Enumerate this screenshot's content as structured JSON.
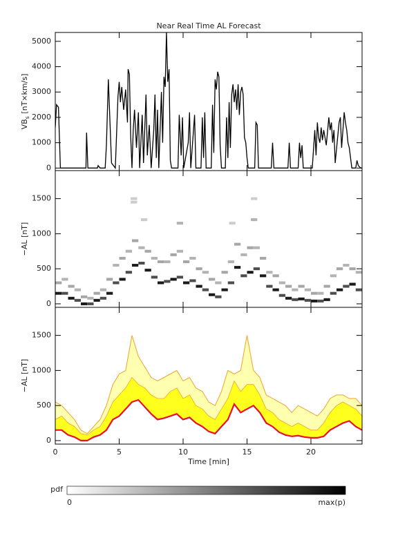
{
  "chart_data": [
    {
      "type": "line",
      "title": "Near Real Time AL Forecast",
      "ylabel": "VB",
      "ylabel_sub": "s",
      "ylabel_unit": " [nT×km/s]",
      "xlim": [
        0,
        24
      ],
      "xticks": [
        0,
        5,
        10,
        15,
        20
      ],
      "ylim": [
        -100,
        5350
      ],
      "yticks": [
        0,
        1000,
        2000,
        3000,
        4000,
        5000
      ],
      "series": [
        {
          "color": "#000000",
          "x": [
            0,
            0.1,
            0.25,
            0.4,
            2.4,
            2.45,
            2.55,
            3.3,
            3.35,
            3.5,
            3.9,
            4.0,
            4.15,
            4.3,
            4.4,
            4.7,
            4.8,
            4.9,
            5.0,
            5.1,
            5.2,
            5.35,
            5.5,
            5.65,
            5.7,
            5.8,
            5.9,
            6.0,
            6.1,
            6.2,
            6.35,
            6.5,
            6.6,
            6.8,
            6.9,
            7.1,
            7.2,
            7.35,
            7.5,
            7.7,
            7.8,
            7.9,
            8.0,
            8.1,
            8.3,
            8.4,
            8.5,
            8.6,
            8.7,
            8.8,
            8.9,
            9.0,
            9.1,
            9.6,
            9.7,
            9.85,
            9.95,
            10.05,
            10.4,
            10.5,
            10.6,
            10.9,
            11.0,
            11.4,
            11.5,
            11.6,
            11.7,
            11.8,
            12.2,
            12.3,
            12.4,
            12.5,
            12.6,
            12.7,
            12.8,
            12.9,
            13.0,
            13.3,
            13.4,
            13.5,
            13.6,
            13.7,
            13.8,
            13.9,
            14.0,
            14.1,
            14.2,
            14.3,
            14.4,
            14.5,
            14.6,
            14.7,
            14.8,
            14.9,
            15.0,
            15.1,
            15.6,
            15.7,
            15.8,
            15.9,
            16.9,
            17.0,
            17.1,
            18.2,
            18.3,
            18.4,
            19.0,
            19.1,
            19.2,
            19.3,
            19.4,
            20.1,
            20.3,
            20.4,
            20.5,
            20.6,
            20.7,
            20.8,
            20.9,
            21.0,
            21.2,
            21.4,
            21.5,
            21.6,
            21.7,
            21.8,
            21.9,
            22.2,
            22.3,
            22.4,
            22.5,
            22.6,
            22.7,
            22.8,
            22.9,
            23.0,
            23.2,
            23.5,
            23.6,
            23.7,
            23.9,
            24.0
          ],
          "values": [
            1600,
            2500,
            2400,
            0,
            0,
            1400,
            0,
            0,
            100,
            0,
            0,
            900,
            3500,
            1500,
            200,
            0,
            1400,
            2800,
            3400,
            2600,
            3200,
            2300,
            3100,
            1800,
            3900,
            3700,
            1200,
            0,
            1500,
            2300,
            800,
            2200,
            0,
            2100,
            200,
            2900,
            500,
            1700,
            0,
            1500,
            2900,
            400,
            2300,
            0,
            3000,
            1000,
            3600,
            3200,
            5350,
            3400,
            3900,
            300,
            0,
            0,
            2100,
            500,
            2000,
            0,
            1000,
            2200,
            0,
            2100,
            0,
            0,
            2000,
            400,
            2200,
            0,
            0,
            2500,
            600,
            3500,
            3100,
            3800,
            3600,
            900,
            0,
            0,
            2000,
            400,
            2600,
            800,
            2900,
            3300,
            2600,
            3100,
            2300,
            3300,
            2100,
            3000,
            3200,
            2900,
            1200,
            1000,
            400,
            0,
            0,
            1800,
            1700,
            0,
            0,
            1000,
            0,
            0,
            1000,
            0,
            0,
            1000,
            400,
            900,
            0,
            0,
            1500,
            500,
            1800,
            1200,
            1000,
            1600,
            1100,
            1500,
            900,
            2000,
            1500,
            1800,
            1000,
            1500,
            200,
            1800,
            2000,
            800,
            1500,
            2200,
            1800,
            1500,
            1000,
            800,
            0,
            0,
            300,
            100,
            0,
            0
          ]
        }
      ]
    },
    {
      "type": "heatmap",
      "ylabel": "−AL [nT]",
      "xlim": [
        0,
        24
      ],
      "xticks": [
        0,
        5,
        10,
        15,
        20
      ],
      "ylim": [
        -50,
        1900
      ],
      "yticks": [
        0,
        500,
        1000,
        1500
      ],
      "colormap": [
        "#ffffff",
        "#000000"
      ],
      "plim": [
        0,
        1
      ],
      "colorbar_label": "pdf",
      "colorbar_ticks": [
        0,
        {
          "value": 1,
          "label": "max(p)"
        }
      ],
      "x": [
        0,
        0.5,
        1,
        1.5,
        2,
        2.5,
        3,
        3.5,
        4,
        4.5,
        5,
        5.5,
        6,
        6.5,
        7,
        7.5,
        8,
        8.5,
        9,
        9.5,
        10,
        10.5,
        11,
        11.5,
        12,
        12.5,
        13,
        13.5,
        14,
        14.5,
        15,
        15.5,
        16,
        16.5,
        17,
        17.5,
        18,
        18.5,
        19,
        19.5,
        20,
        20.5,
        21,
        21.5,
        22,
        22.5,
        23,
        23.5,
        0,
        0.5,
        1,
        1.5,
        2,
        2.5,
        3,
        3.5,
        4,
        4.5,
        5,
        5.5,
        6,
        6.5,
        7,
        7.5,
        8,
        8.5,
        9,
        9.5,
        10,
        10.5,
        11,
        11.5,
        12,
        12.5,
        13,
        13.5,
        14,
        14.5,
        15,
        15.5,
        16,
        16.5,
        17,
        17.5,
        18,
        18.5,
        19,
        19.5,
        20,
        20.5,
        21,
        21.5,
        22,
        22.5,
        23,
        23.5,
        5.9,
        5.9,
        15.3,
        15.3,
        9.5,
        6.7,
        13.6
      ],
      "y": [
        150,
        150,
        80,
        50,
        0,
        0,
        50,
        80,
        150,
        300,
        350,
        450,
        550,
        580,
        480,
        380,
        300,
        320,
        350,
        380,
        300,
        330,
        250,
        200,
        130,
        100,
        200,
        300,
        520,
        400,
        450,
        500,
        400,
        250,
        200,
        120,
        80,
        60,
        70,
        50,
        40,
        40,
        60,
        150,
        200,
        250,
        280,
        200,
        300,
        350,
        250,
        200,
        100,
        80,
        150,
        200,
        350,
        550,
        650,
        750,
        900,
        800,
        750,
        650,
        600,
        600,
        700,
        750,
        600,
        650,
        500,
        450,
        350,
        300,
        450,
        600,
        850,
        700,
        800,
        800,
        650,
        450,
        400,
        300,
        250,
        200,
        250,
        200,
        150,
        150,
        250,
        400,
        500,
        550,
        500,
        450,
        1500,
        1450,
        1500,
        1200,
        1150,
        1200,
        1150
      ],
      "p": [
        0.9,
        0.7,
        0.9,
        0.7,
        0.9,
        0.7,
        0.9,
        0.7,
        0.9,
        0.7,
        0.9,
        0.7,
        0.9,
        0.7,
        0.9,
        0.7,
        0.9,
        0.7,
        0.9,
        0.7,
        0.9,
        0.7,
        0.9,
        0.7,
        0.9,
        0.7,
        0.9,
        0.7,
        0.9,
        0.7,
        0.9,
        0.7,
        0.9,
        0.7,
        0.9,
        0.7,
        0.9,
        0.7,
        0.9,
        0.7,
        0.9,
        0.7,
        0.9,
        0.7,
        0.9,
        0.7,
        0.9,
        0.7,
        0.35,
        0.3,
        0.35,
        0.3,
        0.35,
        0.3,
        0.35,
        0.3,
        0.35,
        0.3,
        0.35,
        0.3,
        0.35,
        0.3,
        0.35,
        0.3,
        0.35,
        0.3,
        0.35,
        0.3,
        0.35,
        0.3,
        0.35,
        0.3,
        0.35,
        0.3,
        0.35,
        0.3,
        0.35,
        0.3,
        0.35,
        0.3,
        0.35,
        0.3,
        0.35,
        0.3,
        0.35,
        0.3,
        0.35,
        0.3,
        0.35,
        0.3,
        0.35,
        0.3,
        0.35,
        0.3,
        0.35,
        0.3,
        0.2,
        0.2,
        0.2,
        0.3,
        0.3,
        0.2,
        0.2
      ]
    },
    {
      "type": "band",
      "ylabel": "−AL [nT]",
      "xlabel": "Time [min]",
      "xlim": [
        0,
        24
      ],
      "xticks": [
        0,
        5,
        10,
        15,
        20
      ],
      "ylim": [
        -50,
        1900
      ],
      "yticks": [
        0,
        500,
        1000,
        1500
      ],
      "x": [
        0,
        0.5,
        1,
        1.5,
        2,
        2.5,
        3,
        3.5,
        4,
        4.5,
        5,
        5.5,
        6,
        6.5,
        7,
        7.5,
        8,
        8.5,
        9,
        9.5,
        10,
        10.5,
        11,
        11.5,
        12,
        12.5,
        13,
        13.5,
        14,
        14.5,
        15,
        15.5,
        16,
        16.5,
        17,
        17.5,
        18,
        18.5,
        19,
        19.5,
        20,
        20.5,
        21,
        21.5,
        22,
        22.5,
        23,
        23.5,
        24
      ],
      "series": [
        {
          "color": "#e8102a",
          "values": [
            150,
            150,
            80,
            50,
            0,
            0,
            50,
            80,
            150,
            300,
            350,
            450,
            550,
            580,
            480,
            380,
            300,
            320,
            350,
            380,
            300,
            330,
            250,
            200,
            130,
            100,
            200,
            300,
            520,
            400,
            450,
            500,
            400,
            250,
            200,
            120,
            80,
            60,
            70,
            50,
            40,
            40,
            60,
            150,
            200,
            250,
            280,
            200,
            150
          ]
        },
        {
          "color": "#ffff1e",
          "values": [
            300,
            350,
            250,
            200,
            100,
            80,
            150,
            200,
            350,
            550,
            650,
            750,
            900,
            800,
            750,
            650,
            600,
            600,
            700,
            750,
            600,
            650,
            500,
            450,
            350,
            300,
            450,
            600,
            850,
            700,
            800,
            800,
            650,
            450,
            400,
            300,
            250,
            200,
            250,
            200,
            150,
            150,
            250,
            400,
            500,
            550,
            500,
            450,
            350
          ]
        },
        {
          "color": "#f0a030",
          "values": [
            550,
            500,
            400,
            300,
            150,
            100,
            200,
            300,
            500,
            800,
            950,
            1000,
            1500,
            1200,
            1050,
            900,
            850,
            900,
            950,
            1000,
            850,
            900,
            750,
            700,
            550,
            500,
            700,
            1000,
            950,
            1000,
            1500,
            1000,
            900,
            650,
            600,
            550,
            500,
            400,
            500,
            450,
            400,
            350,
            450,
            600,
            650,
            650,
            600,
            600,
            500
          ]
        }
      ]
    }
  ]
}
